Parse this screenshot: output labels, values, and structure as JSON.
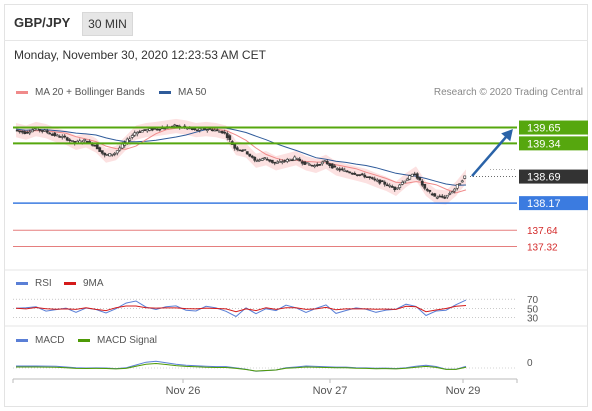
{
  "header": {
    "pair": "GBP/JPY",
    "timeframe": "30 MIN",
    "datetime": "Monday, November 30, 2020 12:23:53 AM CET",
    "credit": "Research © 2020 Trading Central"
  },
  "legend_main": [
    {
      "name": "MA 20 + Bollinger Bands",
      "color": "#f08a8a"
    },
    {
      "name": "MA 50",
      "color": "#2f5b9a"
    }
  ],
  "legend_rsi": [
    {
      "name": "RSI",
      "color": "#5a7fd6"
    },
    {
      "name": "9MA",
      "color": "#d41a1a"
    }
  ],
  "legend_macd": [
    {
      "name": "MACD",
      "color": "#5a7fd6"
    },
    {
      "name": "MACD Signal",
      "color": "#4e9a06"
    }
  ],
  "colors": {
    "resistance": "#56a70e",
    "support": "#3b7be0",
    "target": "#d42a2a",
    "last": "#333333",
    "arrow": "#2a63a8",
    "bollinger": "#fbdcdc",
    "candle_up": "#ffffff",
    "candle_down": "#333333"
  },
  "chart_data": {
    "type": "candlestick",
    "symbol": "GBP/JPY",
    "interval": "30 MIN",
    "ylim": [
      136.9,
      140.15
    ],
    "x_ticks": [
      "Nov 26",
      "Nov 27",
      "Nov 29"
    ],
    "last_price": 138.69,
    "levels": [
      {
        "value": 139.65,
        "label": "139.65",
        "kind": "resistance"
      },
      {
        "value": 139.34,
        "label": "139.34",
        "kind": "resistance"
      },
      {
        "value": 138.17,
        "label": "138.17",
        "kind": "support"
      },
      {
        "value": 137.64,
        "label": "137.64",
        "kind": "target"
      },
      {
        "value": 137.32,
        "label": "137.32",
        "kind": "target"
      }
    ],
    "projection": {
      "from": 138.7,
      "to": 139.65
    },
    "price_path": [
      139.6,
      139.55,
      139.62,
      139.58,
      139.5,
      139.45,
      139.35,
      139.4,
      139.3,
      139.1,
      139.15,
      139.35,
      139.55,
      139.6,
      139.62,
      139.65,
      139.68,
      139.65,
      139.6,
      139.62,
      139.6,
      139.55,
      139.25,
      139.2,
      139.0,
      139.05,
      138.95,
      139.0,
      139.05,
      138.95,
      138.9,
      138.98,
      138.85,
      138.8,
      138.75,
      138.7,
      138.62,
      138.55,
      138.45,
      138.62,
      138.75,
      138.45,
      138.3,
      138.28,
      138.45,
      138.69
    ],
    "rsi": {
      "levels": [
        70,
        50,
        30
      ]
    },
    "macd": {
      "levels": [
        0
      ]
    }
  }
}
